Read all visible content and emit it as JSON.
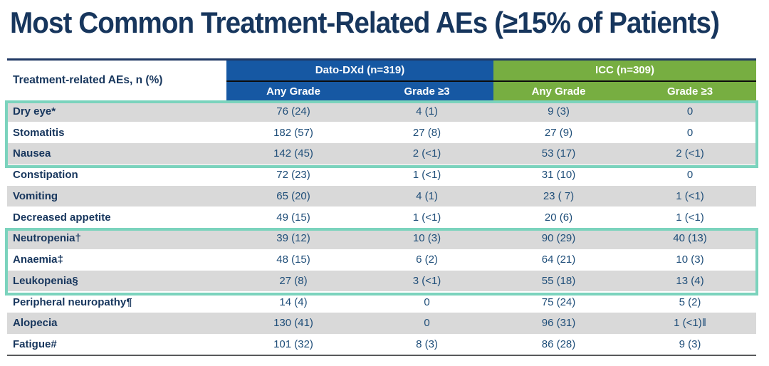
{
  "title": "Most Common Treatment-Related AEs (≥15% of Patients)",
  "chart_data": {
    "type": "table",
    "title": "Most Common Treatment-Related AEs (≥15% of Patients)",
    "corner_header": "Treatment-related AEs, n (%)",
    "column_groups": [
      {
        "label": "Dato-DXd (n=319)"
      },
      {
        "label": "ICC (n=309)"
      }
    ],
    "columns": [
      "Any Grade",
      "Grade ≥3",
      "Any Grade",
      "Grade ≥3"
    ],
    "rows": [
      {
        "label": "Dry eye*",
        "values": [
          "76 (24)",
          "4 (1)",
          "9 (3)",
          "0"
        ]
      },
      {
        "label": "Stomatitis",
        "values": [
          "182 (57)",
          "27 (8)",
          "27 (9)",
          "0"
        ]
      },
      {
        "label": "Nausea",
        "values": [
          "142 (45)",
          "2 (<1)",
          "53 (17)",
          "2 (<1)"
        ]
      },
      {
        "label": "Constipation",
        "values": [
          "72 (23)",
          "1 (<1)",
          "31 (10)",
          "0"
        ]
      },
      {
        "label": "Vomiting",
        "values": [
          "65 (20)",
          "4 (1)",
          "23 ( 7)",
          "1 (<1)"
        ]
      },
      {
        "label": "Decreased appetite",
        "values": [
          "49 (15)",
          "1 (<1)",
          "20 (6)",
          "1 (<1)"
        ]
      },
      {
        "label": "Neutropenia†",
        "values": [
          "39 (12)",
          "10 (3)",
          "90 (29)",
          "40 (13)"
        ]
      },
      {
        "label": "Anaemia‡",
        "values": [
          "48 (15)",
          "6 (2)",
          "64 (21)",
          "10 (3)"
        ]
      },
      {
        "label": "Leukopenia§",
        "values": [
          "27 (8)",
          "3 (<1)",
          "55 (18)",
          "13 (4)"
        ]
      },
      {
        "label": "Peripheral neuropathy¶",
        "values": [
          "14 (4)",
          "0",
          "75 (24)",
          "5 (2)"
        ]
      },
      {
        "label": "Alopecia",
        "values": [
          "130 (41)",
          "0",
          "96 (31)",
          "1 (<1)‖"
        ]
      },
      {
        "label": "Fatigue#",
        "values": [
          "101 (32)",
          "8 (3)",
          "86 (28)",
          "9 (3)"
        ]
      }
    ],
    "highlight_row_groups": [
      [
        0,
        2
      ],
      [
        6,
        8
      ]
    ],
    "layout_hints": {
      "zebra_striping": "gray on rows 1,3,5,7,9,11",
      "highlight_style": "teal outline boxes around ocular/GI rows 1-3 and hematologic rows 7-9"
    }
  },
  "colors": {
    "title_navy": "#17365D",
    "dato_blue": "#1658A3",
    "icc_green": "#77AE41",
    "highlight_teal": "#7BD3BD",
    "row_gray": "#D9D9D9",
    "value_text": "#1F4E79",
    "bottom_rule": "#58595B"
  }
}
